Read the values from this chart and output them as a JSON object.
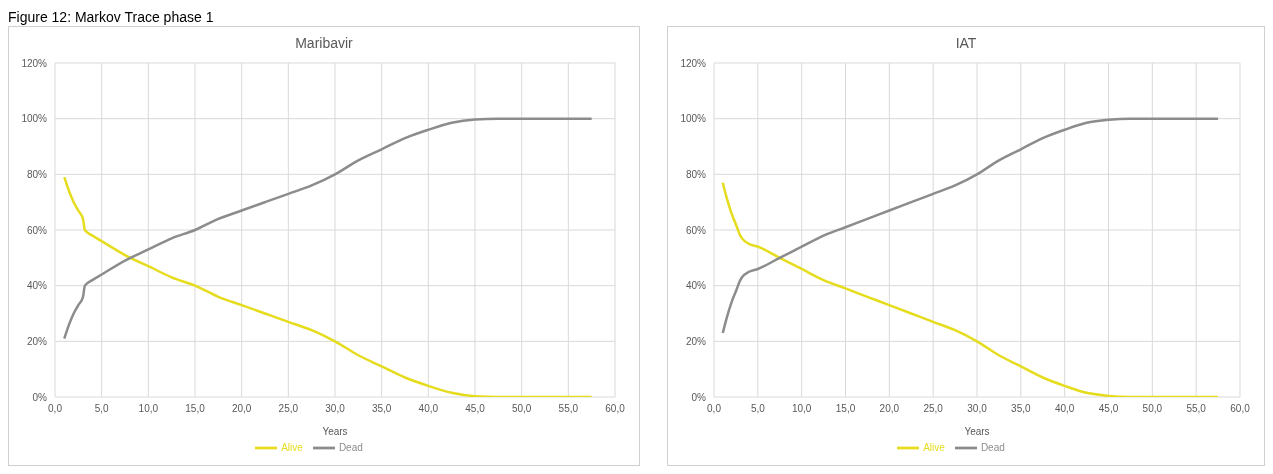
{
  "chart_data": [
    {
      "type": "line",
      "title": "Maribavir",
      "xlabel": "Years",
      "annotations": [
        "Figure 12: Markov Trace phase 1"
      ],
      "x": [
        1,
        1.5,
        2,
        2.5,
        3,
        3.2,
        4,
        5,
        7.5,
        10,
        12.5,
        15,
        17.5,
        20,
        22.5,
        25,
        27.5,
        30,
        32.5,
        35,
        37.5,
        40,
        42.5,
        45,
        47.5,
        50,
        55,
        57.5
      ],
      "series": [
        {
          "name": "Alive",
          "color": "#e6dc1e",
          "values": [
            79,
            74,
            70,
            67,
            64,
            60,
            58,
            56,
            51,
            47,
            43,
            40,
            36,
            33,
            30,
            27,
            24,
            20,
            15,
            11,
            7,
            4,
            1.5,
            0.3,
            0,
            0,
            0,
            0
          ]
        },
        {
          "name": "Dead",
          "color": "#8c8c8c",
          "values": [
            21,
            26,
            30,
            33,
            36,
            40,
            42,
            44,
            49,
            53,
            57,
            60,
            64,
            67,
            70,
            73,
            76,
            80,
            85,
            89,
            93,
            96,
            98.5,
            99.7,
            100,
            100,
            100,
            100
          ]
        }
      ],
      "xlim": [
        0,
        60
      ],
      "xticks": [
        {
          "value": 0,
          "label": "0,0"
        },
        {
          "value": 5,
          "label": "5,0"
        },
        {
          "value": 10,
          "label": "10,0"
        },
        {
          "value": 15,
          "label": "15,0"
        },
        {
          "value": 20,
          "label": "20,0"
        },
        {
          "value": 25,
          "label": "25,0"
        },
        {
          "value": 30,
          "label": "30,0"
        },
        {
          "value": 35,
          "label": "35,0"
        },
        {
          "value": 40,
          "label": "40,0"
        },
        {
          "value": 45,
          "label": "45,0"
        },
        {
          "value": 50,
          "label": "50,0"
        },
        {
          "value": 55,
          "label": "55,0"
        },
        {
          "value": 60,
          "label": "60,0"
        }
      ],
      "ylim": [
        0,
        120
      ],
      "yticks": [
        {
          "value": 0,
          "label": "0%"
        },
        {
          "value": 20,
          "label": "20%"
        },
        {
          "value": 40,
          "label": "40%"
        },
        {
          "value": 60,
          "label": "60%"
        },
        {
          "value": 80,
          "label": "80%"
        },
        {
          "value": 100,
          "label": "100%"
        },
        {
          "value": 120,
          "label": "120%"
        }
      ],
      "grid": true,
      "legend": "bottom",
      "marker": "none"
    },
    {
      "type": "line",
      "title": "IAT",
      "xlabel": "Years",
      "x": [
        1,
        1.5,
        2,
        2.5,
        3,
        3.2,
        4,
        5,
        7.5,
        10,
        12.5,
        15,
        17.5,
        20,
        22.5,
        25,
        27.5,
        30,
        32.5,
        35,
        37.5,
        40,
        42.5,
        45,
        47.5,
        50,
        55,
        57.5
      ],
      "series": [
        {
          "name": "Alive",
          "color": "#e6dc1e",
          "values": [
            77,
            71,
            66,
            62,
            58,
            57,
            55,
            54,
            50,
            46,
            42,
            39,
            36,
            33,
            30,
            27,
            24,
            20,
            15,
            11,
            7,
            4,
            1.5,
            0.4,
            0,
            0,
            0,
            0
          ]
        },
        {
          "name": "Dead",
          "color": "#8c8c8c",
          "values": [
            23,
            29,
            34,
            38,
            42,
            43,
            45,
            46,
            50,
            54,
            58,
            61,
            64,
            67,
            70,
            73,
            76,
            80,
            85,
            89,
            93,
            96,
            98.5,
            99.6,
            100,
            100,
            100,
            100
          ]
        }
      ],
      "xlim": [
        0,
        60
      ],
      "xticks": [
        {
          "value": 0,
          "label": "0,0"
        },
        {
          "value": 5,
          "label": "5,0"
        },
        {
          "value": 10,
          "label": "10,0"
        },
        {
          "value": 15,
          "label": "15,0"
        },
        {
          "value": 20,
          "label": "20,0"
        },
        {
          "value": 25,
          "label": "25,0"
        },
        {
          "value": 30,
          "label": "30,0"
        },
        {
          "value": 35,
          "label": "35,0"
        },
        {
          "value": 40,
          "label": "40,0"
        },
        {
          "value": 45,
          "label": "45,0"
        },
        {
          "value": 50,
          "label": "50,0"
        },
        {
          "value": 55,
          "label": "55,0"
        },
        {
          "value": 60,
          "label": "60,0"
        }
      ],
      "ylim": [
        0,
        120
      ],
      "yticks": [
        {
          "value": 0,
          "label": "0%"
        },
        {
          "value": 20,
          "label": "20%"
        },
        {
          "value": 40,
          "label": "40%"
        },
        {
          "value": 60,
          "label": "60%"
        },
        {
          "value": 80,
          "label": "80%"
        },
        {
          "value": 100,
          "label": "100%"
        },
        {
          "value": 120,
          "label": "120%"
        }
      ],
      "grid": true,
      "legend": "bottom",
      "marker": "none"
    }
  ]
}
